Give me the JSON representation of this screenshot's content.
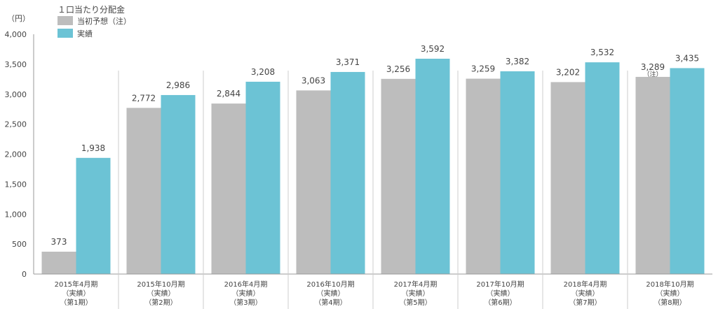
{
  "chart_data": {
    "type": "bar",
    "title": "１口当たり分配金",
    "yunit": "（円）",
    "ylim": [
      0,
      4000
    ],
    "yticks": [
      0,
      500,
      1000,
      1500,
      2000,
      2500,
      3000,
      3500,
      4000
    ],
    "ytick_labels": [
      "0",
      "500",
      "1,000",
      "1,500",
      "2,000",
      "2,500",
      "3,000",
      "3,500",
      "4,000"
    ],
    "categories": [
      [
        "2015年4月期",
        "（実績）",
        "（第1期）"
      ],
      [
        "2015年10月期",
        "（実績）",
        "（第2期）"
      ],
      [
        "2016年4月期",
        "（実績）",
        "（第3期）"
      ],
      [
        "2016年10月期",
        "（実績）",
        "（第4期）"
      ],
      [
        "2017年4月期",
        "（実績）",
        "（第5期）"
      ],
      [
        "2017年10月期",
        "（実績）",
        "（第6期）"
      ],
      [
        "2018年4月期",
        "（実績）",
        "（第7期）"
      ],
      [
        "2018年10月期",
        "（実績）",
        "（第8期）"
      ]
    ],
    "series": [
      {
        "name": "当初予想（注）",
        "color": "#bdbdbd",
        "values": [
          373,
          2772,
          2844,
          3063,
          3256,
          3259,
          3202,
          3289
        ],
        "labels": [
          "373",
          "2,772",
          "2,844",
          "3,063",
          "3,256",
          "3,259",
          "3,202",
          "3,289"
        ]
      },
      {
        "name": "実績",
        "color": "#6cc3d5",
        "values": [
          1938,
          2986,
          3208,
          3371,
          3592,
          3382,
          3532,
          3435
        ],
        "labels": [
          "1,938",
          "2,986",
          "3,208",
          "3,371",
          "3,592",
          "3,382",
          "3,532",
          "3,435"
        ]
      }
    ],
    "annotations": [
      {
        "series": 0,
        "index": 7,
        "text": "（注）"
      }
    ],
    "legend_position": "top-left",
    "grid": false,
    "category_separators": true
  }
}
